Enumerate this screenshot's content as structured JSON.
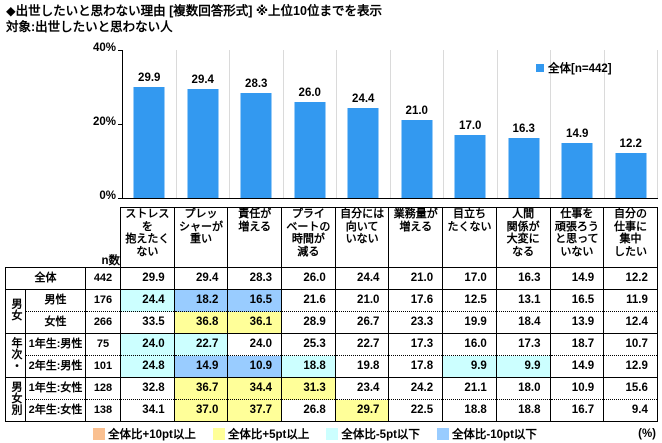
{
  "header": {
    "title": "◆出世したいと思わない理由 [複数回答形式] ※上位10位までを表示",
    "subtitle": "対象:出世したいと思わない人"
  },
  "chart_data": {
    "type": "bar",
    "series_name": "全体[n=442]",
    "categories": [
      "ストレスを抱えたくない",
      "プレッシャーが重い",
      "責任が増える",
      "プライベートの時間が減る",
      "自分には向いていない",
      "業務量が増える",
      "目立ちたくない",
      "人間関係が大変になる",
      "仕事を頑張ろうと思っていない",
      "自分の仕事に集中したい"
    ],
    "values": [
      29.9,
      29.4,
      28.3,
      26.0,
      24.4,
      21.0,
      17.0,
      16.3,
      14.9,
      12.2
    ],
    "ylim": [
      0,
      40
    ],
    "yticks": [
      "40%",
      "20%",
      "0%"
    ],
    "bar_color": "#3399F0",
    "grid": "vertical-category-separators",
    "legend_position": "top-right"
  },
  "table": {
    "n_header": "n数",
    "col_headers": [
      "ストレスを\n抱えたく\nない",
      "プレッ\nシャーが\n重い",
      "責任が\n増える",
      "プライ\nベートの\n時間が\n減る",
      "自分には\n向いて\nいない",
      "業務量が\n増える",
      "目立ち\nたくない",
      "人間\n関係が\n大変に\nなる",
      "仕事を\n頑張ろう\nと思って\nいない",
      "自分の\n仕事に\n集中\nしたい"
    ],
    "rows": [
      {
        "group": null,
        "label": "全体",
        "n": 442,
        "values": [
          29.9,
          29.4,
          28.3,
          26.0,
          24.4,
          21.0,
          17.0,
          16.3,
          14.9,
          12.2
        ]
      },
      {
        "group": {
          "label": "男女",
          "rowspan": 2
        },
        "label": "男性",
        "n": 176,
        "divider": "solid",
        "values": [
          24.4,
          18.2,
          16.5,
          21.6,
          21.0,
          17.6,
          12.5,
          13.1,
          16.5,
          11.9
        ]
      },
      {
        "group": null,
        "label": "女性",
        "n": 266,
        "divider": "dotted",
        "values": [
          33.5,
          36.8,
          36.1,
          28.9,
          26.7,
          23.3,
          19.9,
          18.4,
          13.9,
          12.4
        ]
      },
      {
        "group": {
          "label": "年次・",
          "rowspan": 2
        },
        "label": "1年生:男性",
        "n": 75,
        "divider": "solid",
        "values": [
          24.0,
          22.7,
          24.0,
          25.3,
          22.7,
          17.3,
          16.0,
          17.3,
          18.7,
          10.7
        ]
      },
      {
        "group": null,
        "label": "2年生:男性",
        "n": 101,
        "divider": "dotted",
        "values": [
          24.8,
          14.9,
          10.9,
          18.8,
          19.8,
          17.8,
          9.9,
          9.9,
          14.9,
          12.9
        ]
      },
      {
        "group": {
          "label": "男女別",
          "rowspan": 2
        },
        "label": "1年生:女性",
        "n": 128,
        "divider": "solid",
        "values": [
          32.8,
          36.7,
          34.4,
          31.3,
          23.4,
          24.2,
          21.1,
          18.0,
          10.9,
          15.6
        ]
      },
      {
        "group": null,
        "label": "2年生:女性",
        "n": 138,
        "divider": "dotted",
        "values": [
          34.1,
          37.0,
          37.7,
          26.8,
          29.7,
          22.5,
          18.8,
          18.8,
          16.7,
          9.4
        ]
      }
    ]
  },
  "diff_legend": {
    "items": [
      {
        "label": "全体比+10pt以上",
        "color": "#FAC090",
        "threshold": 10
      },
      {
        "label": "全体比+5pt以上",
        "color": "#FFFF99",
        "threshold": 5
      },
      {
        "label": "全体比-5pt以下",
        "color": "#CCFFFF",
        "threshold": -5
      },
      {
        "label": "全体比-10pt以下",
        "color": "#99CCFF",
        "threshold": -10
      }
    ],
    "unit_label": "(%)"
  }
}
